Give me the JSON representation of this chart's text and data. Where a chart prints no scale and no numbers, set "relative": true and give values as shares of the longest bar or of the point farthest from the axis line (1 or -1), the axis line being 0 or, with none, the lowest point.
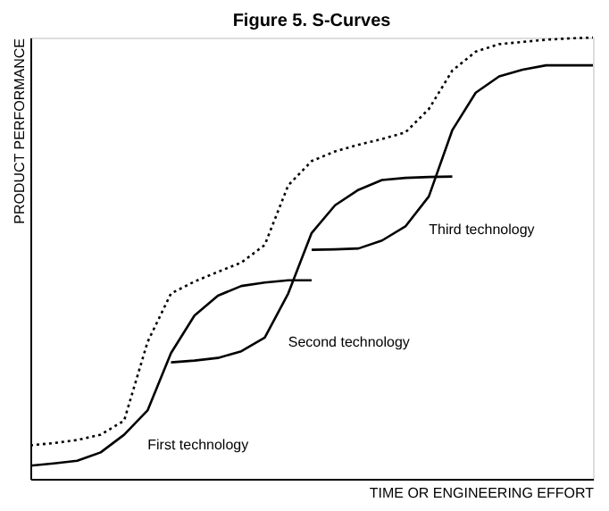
{
  "chart_data": {
    "type": "line",
    "title": "Figure 5. S-Curves",
    "xlabel": "TIME OR ENGINEERING EFFORT",
    "ylabel": "PRODUCT PERFORMANCE",
    "relative": true,
    "tick_labels": false,
    "marker": "none",
    "categories": [
      null,
      null,
      null,
      null,
      null,
      null,
      null,
      null,
      null,
      null,
      null,
      null,
      null,
      null,
      null,
      null,
      null,
      null,
      null,
      null,
      null,
      null,
      null,
      null,
      null
    ],
    "series": [
      {
        "name": "First technology",
        "color": "#000000",
        "line_style": "solid",
        "values": [
          0.03,
          0.035,
          0.041,
          0.06,
          0.1,
          0.155,
          0.285,
          0.37,
          0.415,
          0.437,
          0.445,
          0.45,
          0.45,
          null,
          null,
          null,
          null,
          null,
          null,
          null,
          null,
          null,
          null,
          null,
          null
        ]
      },
      {
        "name": "Second technology",
        "color": "#000000",
        "line_style": "solid",
        "values": [
          null,
          null,
          null,
          null,
          null,
          null,
          0.264,
          0.268,
          0.274,
          0.289,
          0.32,
          0.42,
          0.557,
          0.62,
          0.655,
          0.677,
          0.682,
          0.684,
          0.685,
          null,
          null,
          null,
          null,
          null,
          null
        ]
      },
      {
        "name": "Third technology",
        "color": "#000000",
        "line_style": "solid",
        "values": [
          null,
          null,
          null,
          null,
          null,
          null,
          null,
          null,
          null,
          null,
          null,
          null,
          0.519,
          0.52,
          0.522,
          0.54,
          0.572,
          0.64,
          0.79,
          0.875,
          0.912,
          0.927,
          0.937,
          0.937,
          0.937
        ]
      },
      {
        "color": "#000000",
        "line_style": "dotted",
        "values": [
          0.076,
          0.081,
          0.088,
          0.1,
          0.132,
          0.31,
          0.42,
          0.447,
          0.469,
          0.49,
          0.53,
          0.665,
          0.72,
          0.742,
          0.757,
          0.77,
          0.785,
          0.838,
          0.925,
          0.968,
          0.985,
          0.99,
          0.995,
          0.998,
          1.0
        ]
      }
    ]
  }
}
